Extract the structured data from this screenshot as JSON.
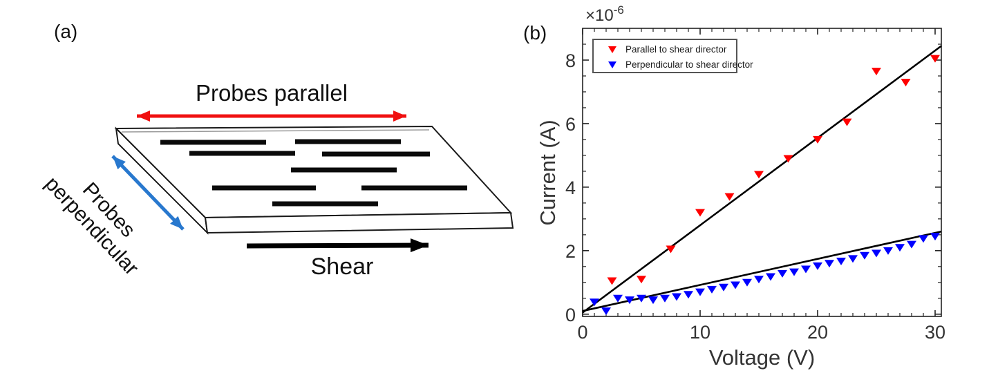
{
  "panel_a": {
    "label": "(a)",
    "probes_parallel_label": "Probes parallel",
    "probes_perpendicular_label": "Probes perpendicular",
    "shear_label": "Shear",
    "colors": {
      "parallel_arrow": "#f01010",
      "perpendicular_arrow": "#2878ce",
      "shear_arrow": "#000000",
      "slab_edge": "#1a1a1a",
      "director_line": "#0a0a0a"
    }
  },
  "panel_b": {
    "label": "(b)"
  },
  "chart_data": {
    "type": "scatter",
    "title": "",
    "xlabel": "Voltage (V)",
    "ylabel": "Current (A)",
    "y_multiplier": "×10",
    "y_exponent": "-6",
    "xlim": [
      0,
      30.53
    ],
    "ylim": [
      -0.07,
      9.0
    ],
    "xticks": [
      0,
      10,
      20,
      30
    ],
    "yticks": [
      0,
      2,
      4,
      6,
      8
    ],
    "x_minor_step": 1,
    "y_minor_step": 0.5,
    "grid": false,
    "legend_position": "top-left",
    "axis_color": "#222222",
    "label_color": "#333333",
    "legend_border_color": "#555555",
    "series": [
      {
        "name": "Parallel to shear director",
        "marker": "triangle-down",
        "color": "#ff0000",
        "x": [
          2.5,
          5,
          7.5,
          10,
          12.5,
          15,
          17.5,
          20,
          22.5,
          25,
          27.5,
          30
        ],
        "y": [
          1.05,
          1.1,
          2.05,
          3.2,
          3.7,
          4.4,
          4.9,
          5.5,
          6.05,
          7.65,
          7.3,
          8.05
        ],
        "fit_line": {
          "intercept": 0.05,
          "slope": 0.275,
          "color": "#000000"
        }
      },
      {
        "name": "Perpendicular to shear director",
        "marker": "triangle-down",
        "color": "#0000ff",
        "x": [
          1,
          2,
          3,
          4,
          5,
          6,
          7,
          8,
          9,
          10,
          11,
          12,
          13,
          14,
          15,
          16,
          17,
          18,
          19,
          20,
          21,
          22,
          23,
          24,
          25,
          26,
          27,
          28,
          29,
          30
        ],
        "y": [
          0.38,
          0.1,
          0.5,
          0.45,
          0.5,
          0.45,
          0.5,
          0.55,
          0.62,
          0.7,
          0.78,
          0.85,
          0.92,
          1.0,
          1.1,
          1.18,
          1.28,
          1.33,
          1.42,
          1.52,
          1.6,
          1.67,
          1.75,
          1.85,
          1.92,
          2.0,
          2.1,
          2.2,
          2.38,
          2.45
        ],
        "fit_line": {
          "intercept": 0.1,
          "slope": 0.082,
          "color": "#000000"
        }
      }
    ]
  }
}
